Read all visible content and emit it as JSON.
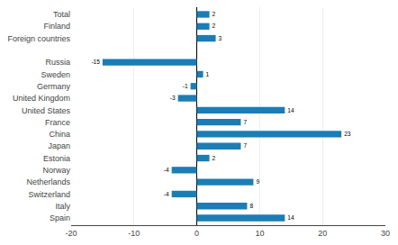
{
  "chart_data": {
    "type": "bar",
    "orientation": "horizontal",
    "categories": [
      "Total",
      "Finland",
      "Foreign countries",
      null,
      "Russia",
      "Sweden",
      "Germany",
      "United Kingdom",
      "United States",
      "France",
      "China",
      "Japan",
      "Estonia",
      "Norway",
      "Netherlands",
      "Switzerland",
      "Italy",
      "Spain"
    ],
    "values": [
      2,
      2,
      3,
      null,
      -15,
      1,
      -1,
      -3,
      14,
      7,
      23,
      7,
      2,
      -4,
      9,
      -4,
      8,
      14
    ],
    "color": "#1b7db5",
    "xlim": [
      -20,
      30
    ],
    "xticks": [
      -20,
      -10,
      0,
      10,
      20,
      30
    ],
    "grid": true,
    "data_labels": true
  }
}
